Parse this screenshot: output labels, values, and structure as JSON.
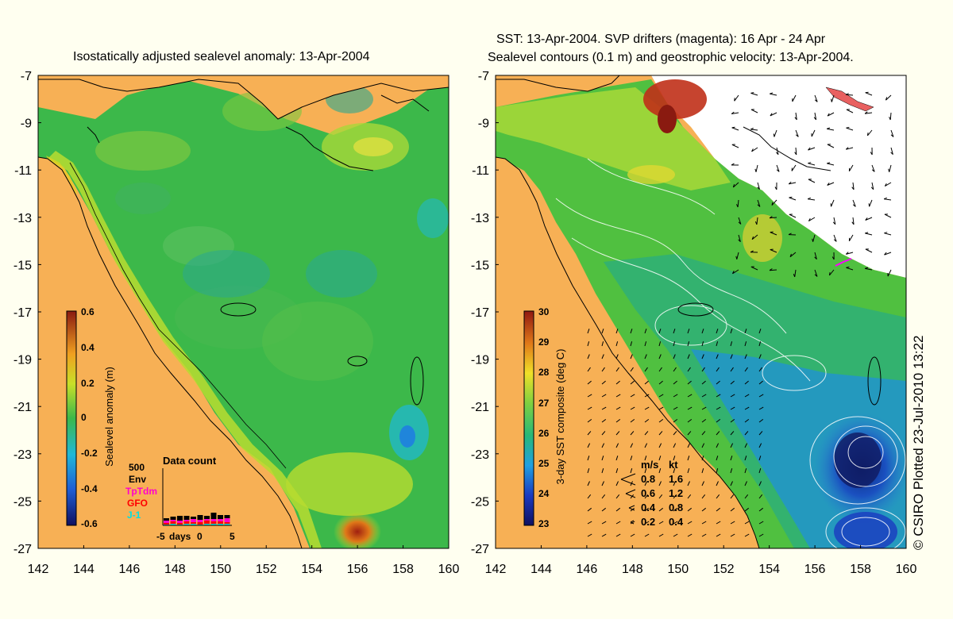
{
  "left": {
    "title": "Isostatically adjusted sealevel anomaly: 13-Apr-2004",
    "colorbar": {
      "label": "Sealevel anomaly (m)",
      "ticks": [
        "0.6",
        "0.4",
        "0.2",
        "0",
        "-0.2",
        "-0.4",
        "-0.6"
      ]
    },
    "data_count": {
      "title": "Data count",
      "scale": "500",
      "sources": [
        {
          "name": "Env",
          "color": "#000000"
        },
        {
          "name": "TpTdm",
          "color": "#ff00cc"
        },
        {
          "name": "GFO",
          "color": "#ff0000"
        },
        {
          "name": "J-1",
          "color": "#00e0e0"
        }
      ],
      "xaxis": {
        "start": "-5",
        "label": "days",
        "mid": "0",
        "end": "5"
      }
    }
  },
  "right": {
    "title_line1": "SST: 13-Apr-2004. SVP drifters (magenta): 16 Apr - 24 Apr",
    "title_line2": "Sealevel contours (0.1 m) and geostrophic velocity: 13-Apr-2004.",
    "colorbar": {
      "label": "3-day SST composite (deg C)",
      "ticks": [
        "30",
        "29",
        "28",
        "27",
        "26",
        "25",
        "24",
        "23"
      ]
    },
    "speed_legend": {
      "header_ms": "m/s",
      "header_kt": "kt",
      "rows": [
        {
          "ms": "0.8",
          "kt": "1.6"
        },
        {
          "ms": "0.6",
          "kt": "1.2"
        },
        {
          "ms": "0.4",
          "kt": "0.8"
        },
        {
          "ms": "0.2",
          "kt": "0.4"
        }
      ]
    }
  },
  "axes": {
    "lat_ticks": [
      "-7",
      "-9",
      "-11",
      "-13",
      "-15",
      "-17",
      "-19",
      "-21",
      "-23",
      "-25",
      "-27"
    ],
    "lon_ticks": [
      "142",
      "144",
      "146",
      "148",
      "150",
      "152",
      "154",
      "156",
      "158",
      "160"
    ]
  },
  "credit": "© CSIRO Plotted 23-Jul-2010 13:22",
  "colors": {
    "land": "#f7b055",
    "sea_green": "#39b54a",
    "cold_blue": "#1a5ac8"
  }
}
